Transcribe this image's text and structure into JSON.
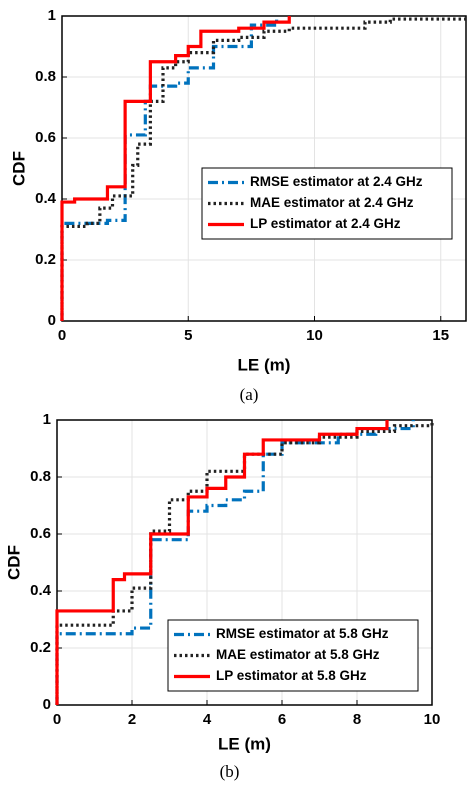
{
  "chart_data": [
    {
      "type": "step",
      "caption": "(a)",
      "xlabel": "LE (m)",
      "ylabel": "CDF",
      "xlim": [
        0,
        16
      ],
      "xticks": [
        0,
        5,
        10,
        15
      ],
      "ylim": [
        0,
        1
      ],
      "yticks": [
        0,
        0.2,
        0.4,
        0.6,
        0.8,
        1
      ],
      "grid": true,
      "legend": "center right",
      "series": [
        {
          "name": "RMSE estimator at 2.4 GHz",
          "color": "#0072bd",
          "line_style": "dashdot",
          "x": [
            0,
            0,
            1.8,
            2.5,
            3.3,
            3.5,
            4.5,
            5,
            6,
            7.5,
            8.5
          ],
          "values": [
            0,
            0.32,
            0.33,
            0.61,
            0.72,
            0.77,
            0.78,
            0.83,
            0.9,
            0.97,
            1
          ]
        },
        {
          "name": "MAE estimator at 2.4 GHz",
          "color": "#222222",
          "line_style": "dotted",
          "x": [
            0,
            0,
            1,
            1.5,
            2,
            2.8,
            3,
            3.5,
            4,
            4.5,
            5,
            6,
            7,
            8,
            9,
            12,
            13,
            16
          ],
          "values": [
            0,
            0.31,
            0.32,
            0.37,
            0.41,
            0.51,
            0.58,
            0.72,
            0.83,
            0.85,
            0.88,
            0.92,
            0.93,
            0.95,
            0.96,
            0.98,
            0.99,
            0.99
          ]
        },
        {
          "name": "LP estimator at 2.4 GHz",
          "color": "#ff0000",
          "line_style": "solid",
          "x": [
            0,
            0,
            0.5,
            1.8,
            2.5,
            3.5,
            4.5,
            5,
            5.5,
            7,
            8,
            9
          ],
          "values": [
            0,
            0.39,
            0.4,
            0.44,
            0.72,
            0.85,
            0.87,
            0.9,
            0.95,
            0.96,
            0.98,
            1
          ]
        }
      ]
    },
    {
      "type": "step",
      "caption": "(b)",
      "xlabel": "LE (m)",
      "ylabel": "CDF",
      "xlim": [
        0,
        10
      ],
      "xticks": [
        0,
        2,
        4,
        6,
        8,
        10
      ],
      "ylim": [
        0,
        1
      ],
      "yticks": [
        0,
        0.2,
        0.4,
        0.6,
        0.8,
        1
      ],
      "grid": true,
      "legend": "lower right",
      "series": [
        {
          "name": "RMSE estimator at 5.8 GHz",
          "color": "#0072bd",
          "line_style": "dashdot",
          "x": [
            0,
            0,
            2,
            2.5,
            3.5,
            4,
            4.5,
            5,
            5.5,
            6,
            7.5,
            8.5,
            9.5
          ],
          "values": [
            0,
            0.25,
            0.27,
            0.58,
            0.68,
            0.7,
            0.72,
            0.75,
            0.88,
            0.92,
            0.95,
            0.97,
            1
          ]
        },
        {
          "name": "MAE estimator at 5.8 GHz",
          "color": "#222222",
          "line_style": "dotted",
          "x": [
            0,
            0,
            1.5,
            2,
            2.5,
            3,
            3.5,
            4,
            5,
            6,
            7,
            8,
            9,
            10
          ],
          "values": [
            0,
            0.28,
            0.33,
            0.41,
            0.61,
            0.72,
            0.75,
            0.82,
            0.88,
            0.92,
            0.94,
            0.96,
            0.98,
            1
          ]
        },
        {
          "name": "LP estimator at 5.8 GHz",
          "color": "#ff0000",
          "line_style": "solid",
          "x": [
            0,
            0,
            1.5,
            1.8,
            2.5,
            3.5,
            4,
            4.5,
            5,
            5.5,
            7,
            8,
            8.8
          ],
          "values": [
            0,
            0.33,
            0.44,
            0.46,
            0.6,
            0.73,
            0.76,
            0.8,
            0.88,
            0.93,
            0.95,
            0.97,
            1
          ]
        }
      ]
    }
  ]
}
